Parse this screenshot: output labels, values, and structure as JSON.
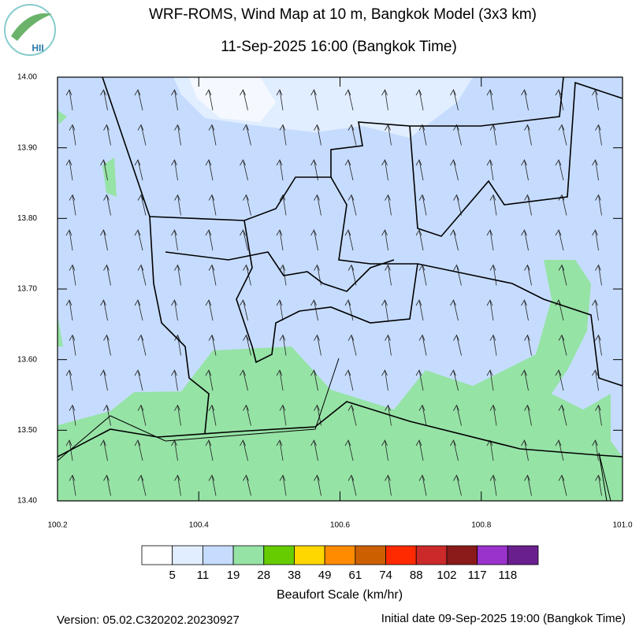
{
  "header": {
    "title": "WRF-ROMS, Wind Map at 10 m, Bangkok Model (3x3 km)",
    "subtitle": "11-Sep-2025 16:00 (Bangkok Time)",
    "logo": "HII"
  },
  "map": {
    "xlim": [
      100.2,
      101.0
    ],
    "ylim": [
      13.4,
      14.0
    ],
    "xticks": [
      100.2,
      100.4,
      100.6,
      100.8,
      {
        "value": 101.0,
        "label": "101.0"
      }
    ],
    "yticks": [
      {
        "value": 13.4,
        "label": "13.40"
      },
      {
        "value": 13.5,
        "label": "13.50"
      },
      {
        "value": 13.6,
        "label": "13.60"
      },
      {
        "value": 13.7,
        "label": "13.70"
      },
      {
        "value": 13.8,
        "label": "13.80"
      },
      {
        "value": 13.9,
        "label": "13.90"
      },
      {
        "value": 14.0,
        "label": "14.00"
      }
    ]
  },
  "legend": {
    "title": "Beaufort Scale (km/hr)",
    "levels": [
      5,
      11,
      19,
      28,
      38,
      49,
      61,
      74,
      88,
      102,
      117,
      118
    ],
    "colors": [
      "#ffffff",
      "#e1eeff",
      "#c6dcff",
      "#96e3a6",
      "#66cc00",
      "#ffd700",
      "#ff8c00",
      "#cc6000",
      "#ff2a00",
      "#cc2a2a",
      "#8b1a1a",
      "#9933cc",
      "#6a1f8f"
    ]
  },
  "footer": {
    "version": "Version: 05.02.C320202.20230927",
    "initial_date": "Initial date 09-Sep-2025 19:00 (Bangkok Time)"
  }
}
